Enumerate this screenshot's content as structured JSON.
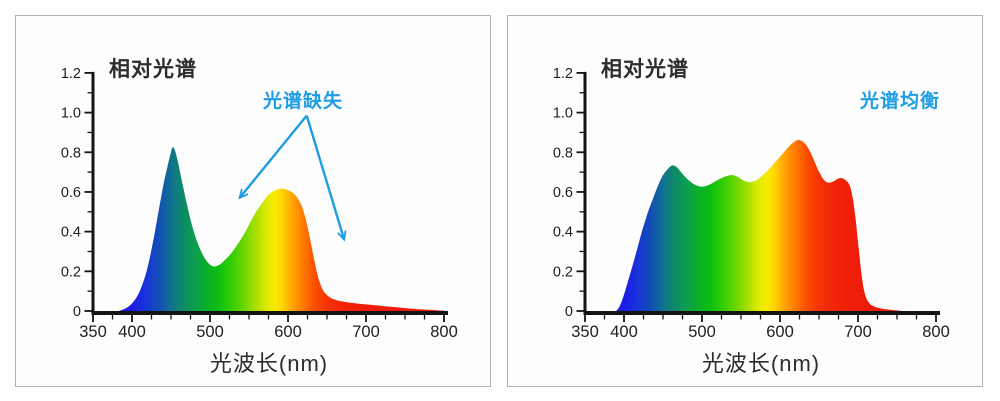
{
  "page_bg": "#ffffff",
  "panel_style": {
    "border_color": "#b3b3b3",
    "bg": "#fdfdfd"
  },
  "axis_color": "#141414",
  "tick_label_color": "#1f1f1f",
  "text_color": "#2d2d2d",
  "annotation_color": "#1e9de5",
  "spectrum_gradient": [
    {
      "nm": 383,
      "color": "#2613cc"
    },
    {
      "nm": 400,
      "color": "#1b1ce4"
    },
    {
      "nm": 415,
      "color": "#1830dc"
    },
    {
      "nm": 435,
      "color": "#124fb4"
    },
    {
      "nm": 450,
      "color": "#10718f"
    },
    {
      "nm": 465,
      "color": "#0e8a68"
    },
    {
      "nm": 480,
      "color": "#0b9e4e"
    },
    {
      "nm": 495,
      "color": "#09ae2a"
    },
    {
      "nm": 510,
      "color": "#0cbe12"
    },
    {
      "nm": 525,
      "color": "#2ecb06"
    },
    {
      "nm": 540,
      "color": "#5ed400"
    },
    {
      "nm": 555,
      "color": "#99dd00"
    },
    {
      "nm": 570,
      "color": "#d6e800"
    },
    {
      "nm": 582,
      "color": "#f8ec00"
    },
    {
      "nm": 592,
      "color": "#ffd900"
    },
    {
      "nm": 602,
      "color": "#ffb000"
    },
    {
      "nm": 612,
      "color": "#ff9100"
    },
    {
      "nm": 622,
      "color": "#ff7300"
    },
    {
      "nm": 635,
      "color": "#fb4c00"
    },
    {
      "nm": 650,
      "color": "#f63305"
    },
    {
      "nm": 670,
      "color": "#f12408"
    },
    {
      "nm": 700,
      "color": "#ee1c09"
    },
    {
      "nm": 800,
      "color": "#ec1808"
    }
  ],
  "chart_data": [
    {
      "type": "area",
      "title": "相对光谱",
      "xlabel": "光波长(nm)",
      "xlim": [
        350,
        800
      ],
      "ylim": [
        0,
        1.2
      ],
      "grid": false,
      "x_ticks": {
        "major": [
          350,
          400,
          500,
          600,
          700,
          800
        ],
        "labels": [
          "350",
          "400",
          "500",
          "600",
          "700",
          "800"
        ],
        "minor": [
          375,
          425,
          450,
          475,
          525,
          550,
          575,
          625,
          650,
          675,
          725,
          750,
          775
        ]
      },
      "y_ticks": {
        "major": [
          0,
          0.2,
          0.4,
          0.6,
          0.8,
          1.0,
          1.2
        ],
        "labels": [
          "0",
          "0.2",
          "0.4",
          "0.6",
          "0.8",
          "1.0",
          "1.2"
        ],
        "minor": [
          0.1,
          0.3,
          0.5,
          0.7,
          0.9,
          1.1
        ]
      },
      "annotation": {
        "text": "光谱缺失",
        "arrows": [
          {
            "from": [
              624,
              0.985
            ],
            "to": [
              538,
              0.57
            ]
          },
          {
            "from": [
              624,
              0.985
            ],
            "to": [
              672,
              0.36
            ]
          }
        ]
      },
      "points": [
        [
          383,
          0
        ],
        [
          390,
          0.01
        ],
        [
          398,
          0.03
        ],
        [
          406,
          0.07
        ],
        [
          413,
          0.13
        ],
        [
          420,
          0.22
        ],
        [
          427,
          0.35
        ],
        [
          434,
          0.5
        ],
        [
          440,
          0.63
        ],
        [
          445,
          0.72
        ],
        [
          449,
          0.785
        ],
        [
          452,
          0.825
        ],
        [
          455,
          0.81
        ],
        [
          459,
          0.75
        ],
        [
          464,
          0.655
        ],
        [
          470,
          0.545
        ],
        [
          476,
          0.445
        ],
        [
          483,
          0.355
        ],
        [
          490,
          0.29
        ],
        [
          496,
          0.25
        ],
        [
          502,
          0.228
        ],
        [
          507,
          0.225
        ],
        [
          513,
          0.235
        ],
        [
          520,
          0.26
        ],
        [
          528,
          0.295
        ],
        [
          536,
          0.34
        ],
        [
          544,
          0.39
        ],
        [
          552,
          0.45
        ],
        [
          560,
          0.505
        ],
        [
          568,
          0.55
        ],
        [
          575,
          0.585
        ],
        [
          582,
          0.605
        ],
        [
          588,
          0.615
        ],
        [
          595,
          0.615
        ],
        [
          602,
          0.605
        ],
        [
          608,
          0.59
        ],
        [
          613,
          0.565
        ],
        [
          618,
          0.525
        ],
        [
          623,
          0.46
        ],
        [
          628,
          0.37
        ],
        [
          633,
          0.27
        ],
        [
          638,
          0.18
        ],
        [
          643,
          0.12
        ],
        [
          648,
          0.088
        ],
        [
          654,
          0.068
        ],
        [
          662,
          0.055
        ],
        [
          672,
          0.047
        ],
        [
          684,
          0.04
        ],
        [
          698,
          0.034
        ],
        [
          714,
          0.028
        ],
        [
          732,
          0.021
        ],
        [
          752,
          0.014
        ],
        [
          772,
          0.008
        ],
        [
          790,
          0.004
        ],
        [
          800,
          0.002
        ]
      ]
    },
    {
      "type": "area",
      "title": "相对光谱",
      "xlabel": "光波长(nm)",
      "xlim": [
        350,
        800
      ],
      "ylim": [
        0,
        1.2
      ],
      "grid": false,
      "x_ticks": {
        "major": [
          350,
          400,
          500,
          600,
          700,
          800
        ],
        "labels": [
          "350",
          "400",
          "500",
          "600",
          "700",
          "800"
        ],
        "minor": [
          375,
          425,
          450,
          475,
          525,
          550,
          575,
          625,
          650,
          675,
          725,
          750,
          775
        ]
      },
      "y_ticks": {
        "major": [
          0,
          0.2,
          0.4,
          0.6,
          0.8,
          1.0,
          1.2
        ],
        "labels": [
          "0",
          "0.2",
          "0.4",
          "0.6",
          "0.8",
          "1.0",
          "1.2"
        ],
        "minor": [
          0.1,
          0.3,
          0.5,
          0.7,
          0.9,
          1.1
        ]
      },
      "annotation": {
        "text": "光谱均衡",
        "arrows": []
      },
      "points": [
        [
          390,
          0
        ],
        [
          394,
          0.02
        ],
        [
          399,
          0.07
        ],
        [
          404,
          0.135
        ],
        [
          410,
          0.215
        ],
        [
          416,
          0.3
        ],
        [
          423,
          0.4
        ],
        [
          430,
          0.49
        ],
        [
          437,
          0.565
        ],
        [
          444,
          0.635
        ],
        [
          450,
          0.685
        ],
        [
          456,
          0.715
        ],
        [
          461,
          0.733
        ],
        [
          466,
          0.73
        ],
        [
          471,
          0.71
        ],
        [
          477,
          0.682
        ],
        [
          484,
          0.655
        ],
        [
          491,
          0.636
        ],
        [
          498,
          0.627
        ],
        [
          505,
          0.63
        ],
        [
          512,
          0.642
        ],
        [
          519,
          0.658
        ],
        [
          526,
          0.672
        ],
        [
          533,
          0.682
        ],
        [
          539,
          0.685
        ],
        [
          545,
          0.678
        ],
        [
          551,
          0.663
        ],
        [
          557,
          0.652
        ],
        [
          563,
          0.65
        ],
        [
          570,
          0.66
        ],
        [
          578,
          0.685
        ],
        [
          587,
          0.72
        ],
        [
          596,
          0.76
        ],
        [
          605,
          0.8
        ],
        [
          613,
          0.835
        ],
        [
          620,
          0.857
        ],
        [
          625,
          0.862
        ],
        [
          631,
          0.848
        ],
        [
          637,
          0.815
        ],
        [
          643,
          0.765
        ],
        [
          649,
          0.71
        ],
        [
          655,
          0.668
        ],
        [
          660,
          0.649
        ],
        [
          665,
          0.648
        ],
        [
          670,
          0.657
        ],
        [
          675,
          0.668
        ],
        [
          679,
          0.67
        ],
        [
          684,
          0.66
        ],
        [
          689,
          0.635
        ],
        [
          693,
          0.575
        ],
        [
          697,
          0.46
        ],
        [
          701,
          0.31
        ],
        [
          705,
          0.17
        ],
        [
          709,
          0.085
        ],
        [
          714,
          0.042
        ],
        [
          721,
          0.022
        ],
        [
          731,
          0.012
        ],
        [
          742,
          0.006
        ],
        [
          752,
          0.002
        ],
        [
          758,
          0
        ]
      ]
    }
  ]
}
